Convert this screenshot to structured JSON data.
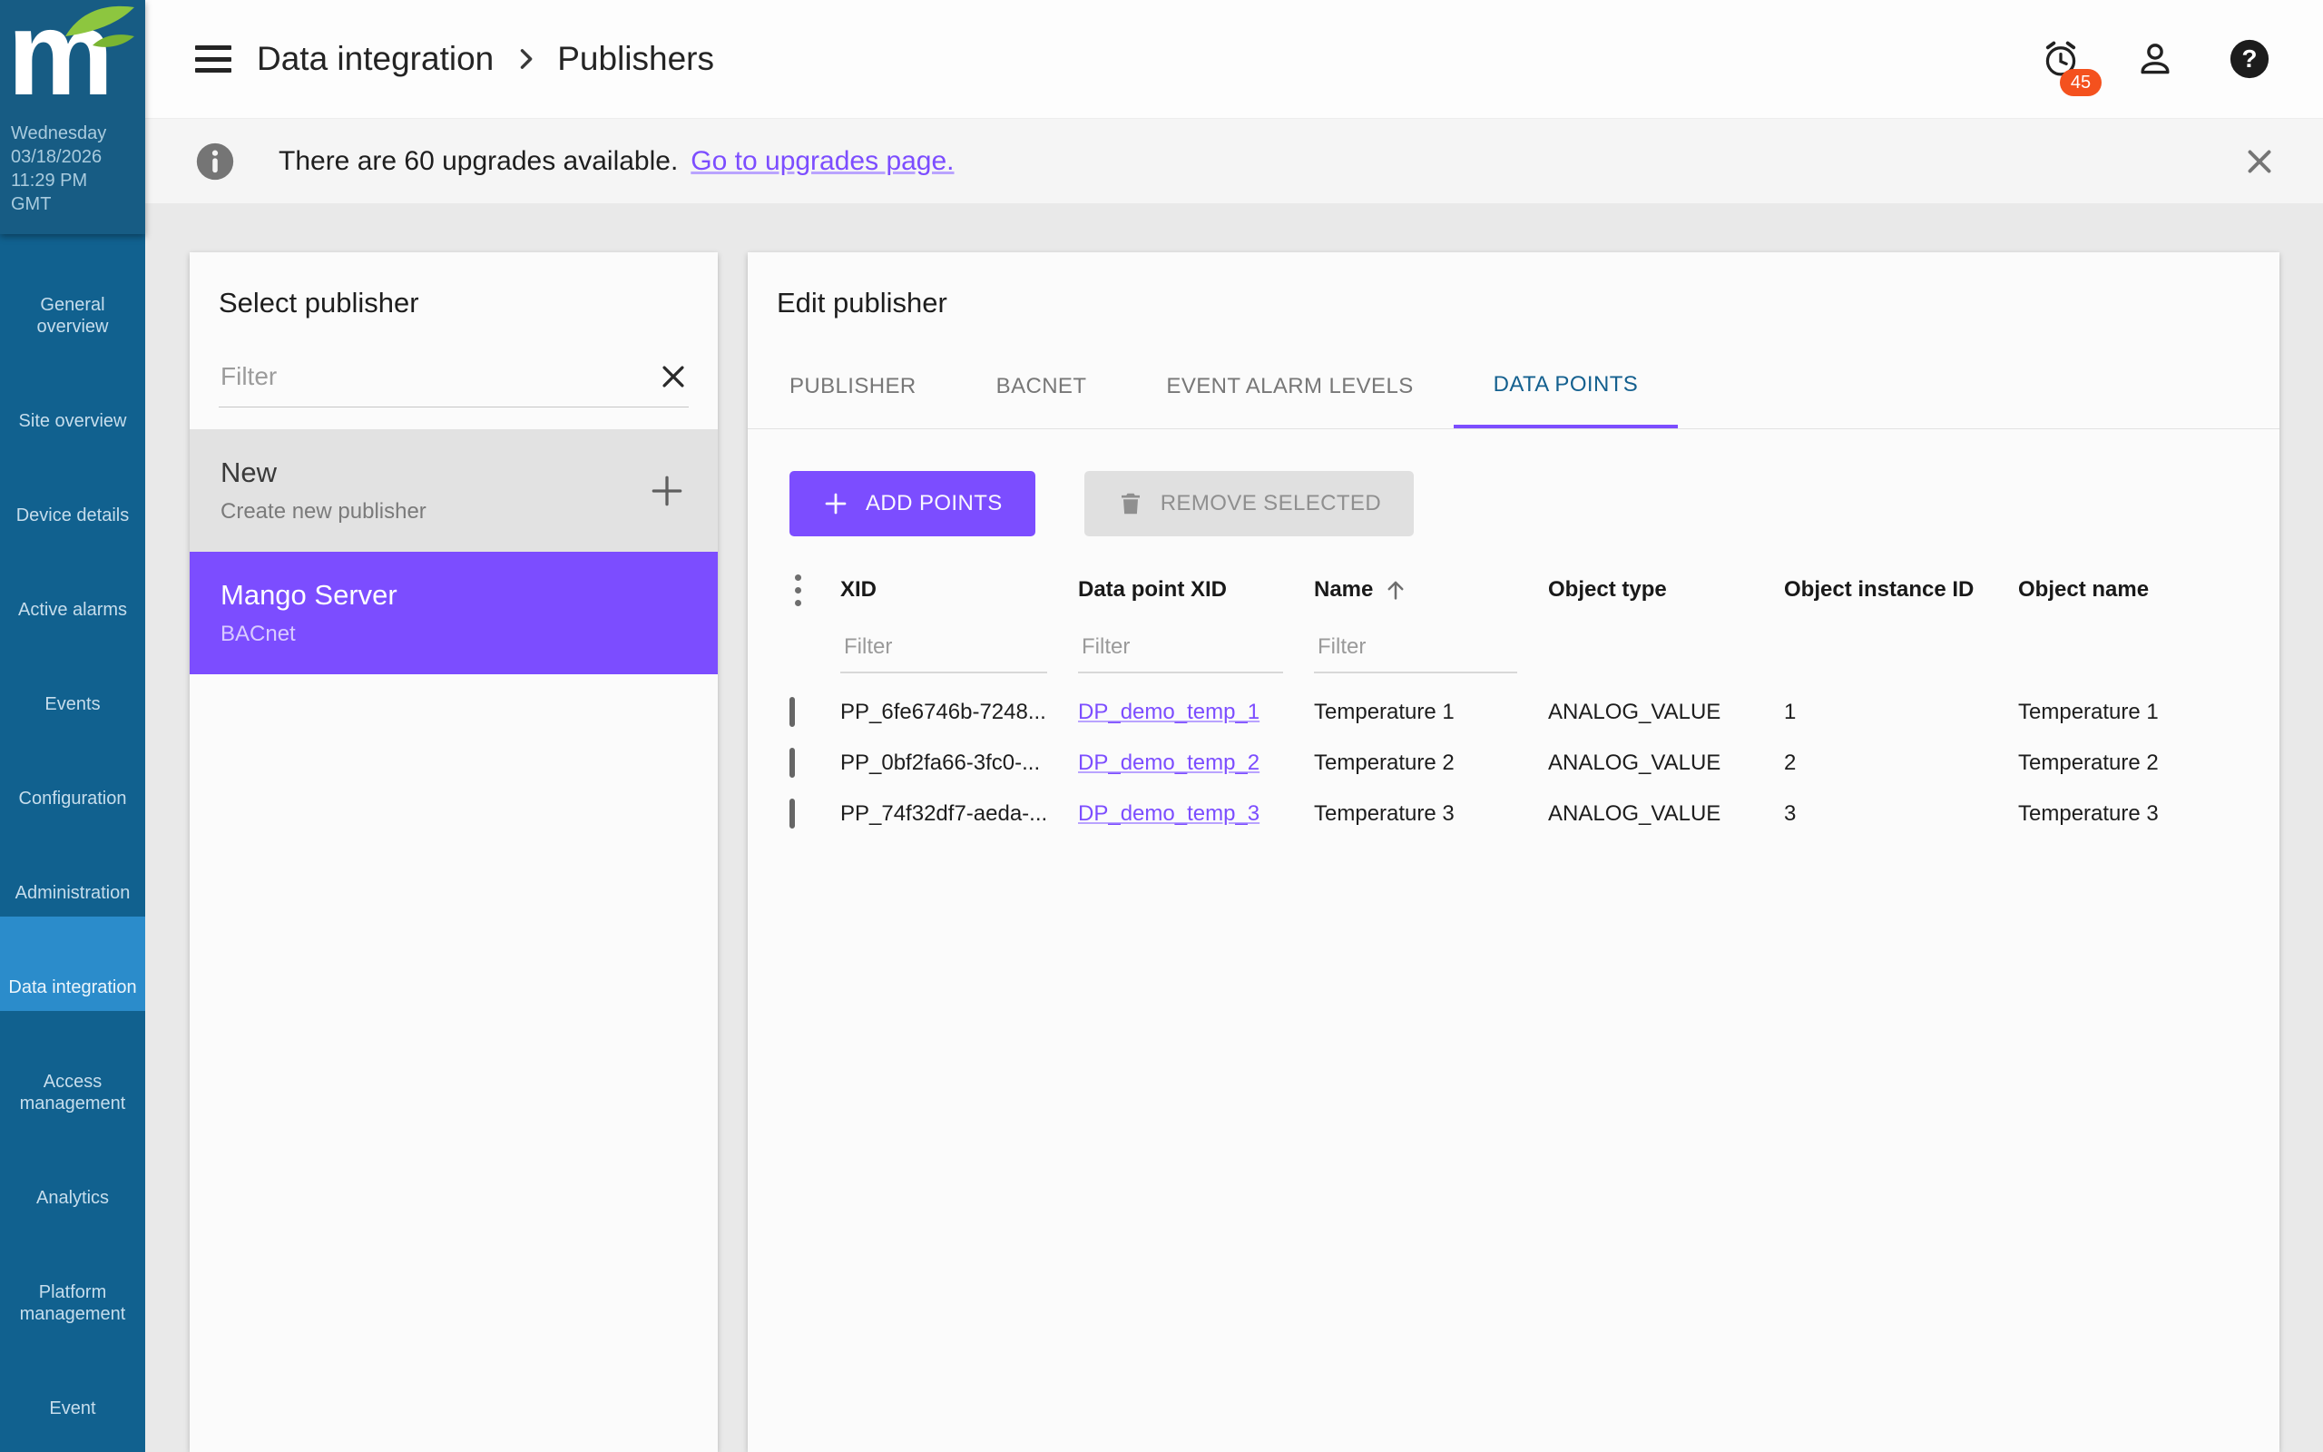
{
  "colors": {
    "accent_purple": "#7C4DFF",
    "sidebar_header": "#175C84",
    "sidebar_bg": "#11618F",
    "sidebar_active": "#2B8CCB",
    "badge_orange": "#F4511E",
    "tab_active_blue": "#14608F"
  },
  "sidebar": {
    "date": {
      "weekday": "Wednesday",
      "date": "03/18/2026",
      "time": "11:29 PM",
      "tz": "GMT"
    },
    "items": [
      {
        "label": "General overview",
        "icon": "globe-icon",
        "active": false
      },
      {
        "label": "Site overview",
        "icon": "location-pin-icon",
        "active": false
      },
      {
        "label": "Device details",
        "icon": "search-icon",
        "active": false
      },
      {
        "label": "Active alarms",
        "icon": "alarm-clock-icon",
        "active": false
      },
      {
        "label": "Events",
        "icon": "alarm-clock-icon",
        "active": false
      },
      {
        "label": "Configuration",
        "icon": "gear-icon",
        "active": false
      },
      {
        "label": "Administration",
        "icon": "wrench-icon",
        "active": false
      },
      {
        "label": "Data integration",
        "icon": "cloud-sync-icon",
        "active": true
      },
      {
        "label": "Access management",
        "icon": "key-icon",
        "active": false
      },
      {
        "label": "Analytics",
        "icon": "eye-icon",
        "active": false
      },
      {
        "label": "Platform management",
        "icon": "monitor-gear-icon",
        "active": false
      },
      {
        "label": "Event",
        "icon": "gear-sync-icon",
        "active": false
      }
    ]
  },
  "topbar": {
    "breadcrumb": [
      {
        "label": "Data integration"
      },
      {
        "label": "Publishers"
      }
    ],
    "alarm_badge": "45"
  },
  "banner": {
    "text": "There are 60 upgrades available.",
    "link": "Go to upgrades page."
  },
  "publisher_panel": {
    "title": "Select publisher",
    "filter_placeholder": "Filter",
    "items": [
      {
        "title": "New",
        "subtitle": "Create new publisher",
        "selected": false,
        "new_item": true
      },
      {
        "title": "Mango Server",
        "subtitle": "BACnet",
        "selected": true,
        "new_item": false
      }
    ]
  },
  "edit_panel": {
    "title": "Edit publisher",
    "tabs": [
      {
        "label": "PUBLISHER",
        "active": false
      },
      {
        "label": "BACNET",
        "active": false
      },
      {
        "label": "EVENT ALARM LEVELS",
        "active": false
      },
      {
        "label": "DATA POINTS",
        "active": true
      }
    ],
    "toolbar": {
      "add_label": "ADD POINTS",
      "remove_label": "REMOVE SELECTED"
    },
    "table": {
      "columns": {
        "xid": "XID",
        "data_point_xid": "Data point XID",
        "name": "Name",
        "object_type": "Object type",
        "object_instance_id": "Object instance ID",
        "object_name": "Object name"
      },
      "sorted_column": "Name",
      "sort_direction": "asc",
      "filter_placeholder": "Filter",
      "rows": [
        {
          "xid": "PP_6fe6746b-7248...",
          "data_point_xid": "DP_demo_temp_1",
          "name": "Temperature 1",
          "object_type": "ANALOG_VALUE",
          "object_instance_id": "1",
          "object_name": "Temperature 1"
        },
        {
          "xid": "PP_0bf2fa66-3fc0-...",
          "data_point_xid": "DP_demo_temp_2",
          "name": "Temperature 2",
          "object_type": "ANALOG_VALUE",
          "object_instance_id": "2",
          "object_name": "Temperature 2"
        },
        {
          "xid": "PP_74f32df7-aeda-...",
          "data_point_xid": "DP_demo_temp_3",
          "name": "Temperature 3",
          "object_type": "ANALOG_VALUE",
          "object_instance_id": "3",
          "object_name": "Temperature 3"
        }
      ]
    }
  }
}
